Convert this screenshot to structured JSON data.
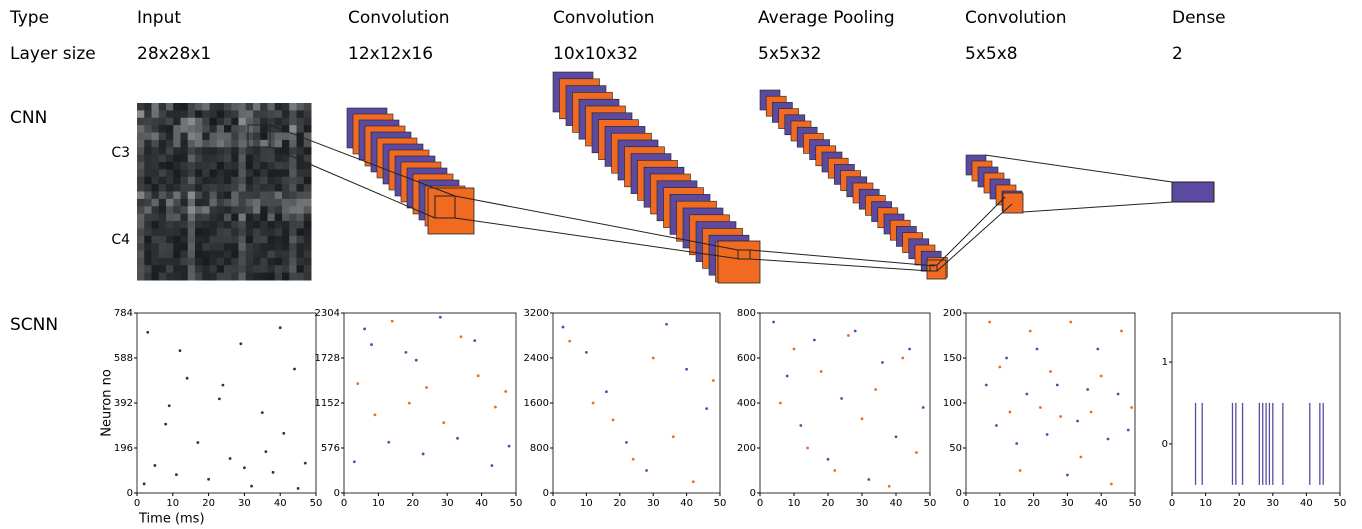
{
  "header": {
    "rows": [
      [
        "Type",
        "Input",
        "Convolution",
        "Convolution",
        "Average Pooling",
        "Convolution",
        "Dense"
      ],
      [
        "Layer size",
        "28x28x1",
        "12x12x16",
        "10x10x32",
        "5x5x32",
        "5x5x8",
        "2"
      ]
    ]
  },
  "labels": {
    "cnn": "CNN",
    "scnn": "SCNN",
    "c3": "C3",
    "c4": "C4"
  },
  "chart_data": [
    {
      "type": "raster",
      "ylabel": "Neuron no",
      "xlabel": "Time (ms)",
      "xlim": [
        0,
        50
      ],
      "xticks": [
        0,
        10,
        20,
        30,
        40,
        50
      ],
      "ylim": [
        0,
        784
      ],
      "yticks": [
        0,
        196,
        392,
        588,
        784
      ],
      "series": [
        {
          "color": "#333333",
          "points": [
            [
              2,
              40
            ],
            [
              5,
              120
            ],
            [
              8,
              300
            ],
            [
              11,
              80
            ],
            [
              14,
              500
            ],
            [
              17,
              220
            ],
            [
              20,
              60
            ],
            [
              23,
              410
            ],
            [
              26,
              150
            ],
            [
              29,
              650
            ],
            [
              32,
              30
            ],
            [
              35,
              350
            ],
            [
              38,
              90
            ],
            [
              41,
              260
            ],
            [
              44,
              540
            ],
            [
              47,
              130
            ],
            [
              3,
              700
            ],
            [
              12,
              620
            ],
            [
              24,
              470
            ],
            [
              36,
              180
            ],
            [
              45,
              20
            ],
            [
              9,
              380
            ],
            [
              30,
              110
            ],
            [
              40,
              720
            ]
          ]
        }
      ]
    },
    {
      "type": "raster",
      "xlim": [
        0,
        50
      ],
      "xticks": [
        0,
        10,
        20,
        30,
        40,
        50
      ],
      "ylim": [
        0,
        2304
      ],
      "yticks": [
        0,
        576,
        1152,
        1728,
        2304
      ],
      "series": [
        {
          "color": "#5b4aa0",
          "points": [
            [
              3,
              400
            ],
            [
              8,
              1900
            ],
            [
              13,
              650
            ],
            [
              18,
              1800
            ],
            [
              23,
              500
            ],
            [
              28,
              2250
            ],
            [
              33,
              700
            ],
            [
              38,
              1950
            ],
            [
              43,
              350
            ],
            [
              48,
              600
            ],
            [
              6,
              2100
            ],
            [
              21,
              1700
            ]
          ]
        },
        {
          "color": "#f06a22",
          "points": [
            [
              4,
              1400
            ],
            [
              9,
              1000
            ],
            [
              14,
              2200
            ],
            [
              19,
              1150
            ],
            [
              24,
              1350
            ],
            [
              29,
              900
            ],
            [
              34,
              2000
            ],
            [
              39,
              1500
            ],
            [
              44,
              1100
            ],
            [
              47,
              1300
            ]
          ]
        }
      ]
    },
    {
      "type": "raster",
      "xlim": [
        0,
        50
      ],
      "xticks": [
        0,
        10,
        20,
        30,
        40,
        50
      ],
      "ylim": [
        0,
        3200
      ],
      "yticks": [
        0,
        800,
        1600,
        2400,
        3200
      ],
      "series": [
        {
          "color": "#5b4aa0",
          "points": [
            [
              3,
              2950
            ],
            [
              10,
              2500
            ],
            [
              16,
              1800
            ],
            [
              22,
              900
            ],
            [
              28,
              400
            ],
            [
              34,
              3000
            ],
            [
              40,
              2200
            ],
            [
              46,
              1500
            ]
          ]
        },
        {
          "color": "#f06a22",
          "points": [
            [
              5,
              2700
            ],
            [
              12,
              1600
            ],
            [
              18,
              1300
            ],
            [
              24,
              600
            ],
            [
              30,
              2400
            ],
            [
              36,
              1000
            ],
            [
              42,
              200
            ],
            [
              48,
              2000
            ]
          ]
        }
      ]
    },
    {
      "type": "raster",
      "xlim": [
        0,
        50
      ],
      "xticks": [
        0,
        10,
        20,
        30,
        40,
        50
      ],
      "ylim": [
        0,
        800
      ],
      "yticks": [
        0,
        200,
        400,
        600,
        800
      ],
      "series": [
        {
          "color": "#5b4aa0",
          "points": [
            [
              4,
              760
            ],
            [
              8,
              520
            ],
            [
              12,
              300
            ],
            [
              16,
              680
            ],
            [
              20,
              150
            ],
            [
              24,
              420
            ],
            [
              28,
              720
            ],
            [
              32,
              60
            ],
            [
              36,
              580
            ],
            [
              40,
              250
            ],
            [
              44,
              640
            ],
            [
              48,
              380
            ]
          ]
        },
        {
          "color": "#f06a22",
          "points": [
            [
              6,
              400
            ],
            [
              10,
              640
            ],
            [
              14,
              200
            ],
            [
              18,
              540
            ],
            [
              22,
              100
            ],
            [
              26,
              700
            ],
            [
              30,
              330
            ],
            [
              34,
              460
            ],
            [
              38,
              30
            ],
            [
              42,
              600
            ],
            [
              46,
              180
            ]
          ]
        }
      ]
    },
    {
      "type": "raster",
      "xlim": [
        0,
        50
      ],
      "xticks": [
        0,
        10,
        20,
        30,
        40,
        50
      ],
      "ylim": [
        0,
        200
      ],
      "yticks": [
        0,
        50,
        100,
        150,
        200
      ],
      "series": [
        {
          "color": "#5b4aa0",
          "points": [
            [
              6,
              120
            ],
            [
              9,
              75
            ],
            [
              12,
              150
            ],
            [
              15,
              55
            ],
            [
              18,
              110
            ],
            [
              21,
              160
            ],
            [
              24,
              65
            ],
            [
              27,
              120
            ],
            [
              30,
              20
            ],
            [
              33,
              80
            ],
            [
              36,
              115
            ],
            [
              39,
              160
            ],
            [
              42,
              60
            ],
            [
              45,
              110
            ],
            [
              48,
              70
            ]
          ]
        },
        {
          "color": "#f06a22",
          "points": [
            [
              7,
              190
            ],
            [
              10,
              140
            ],
            [
              13,
              90
            ],
            [
              16,
              25
            ],
            [
              19,
              180
            ],
            [
              22,
              95
            ],
            [
              25,
              135
            ],
            [
              28,
              85
            ],
            [
              31,
              190
            ],
            [
              34,
              40
            ],
            [
              37,
              90
            ],
            [
              40,
              130
            ],
            [
              43,
              10
            ],
            [
              46,
              180
            ],
            [
              49,
              95
            ]
          ]
        }
      ]
    },
    {
      "type": "spikes",
      "xlim": [
        0,
        50
      ],
      "xticks": [
        0,
        10,
        20,
        30,
        40,
        50
      ],
      "ylim": [
        -0.6,
        1.6
      ],
      "yticks": [
        0,
        1
      ],
      "series": [
        {
          "color": "#5b4aa0",
          "neuron": 0,
          "times": [
            7,
            9,
            18,
            19,
            21,
            26,
            27,
            28,
            29,
            30,
            33,
            41,
            44,
            45
          ]
        }
      ]
    }
  ]
}
